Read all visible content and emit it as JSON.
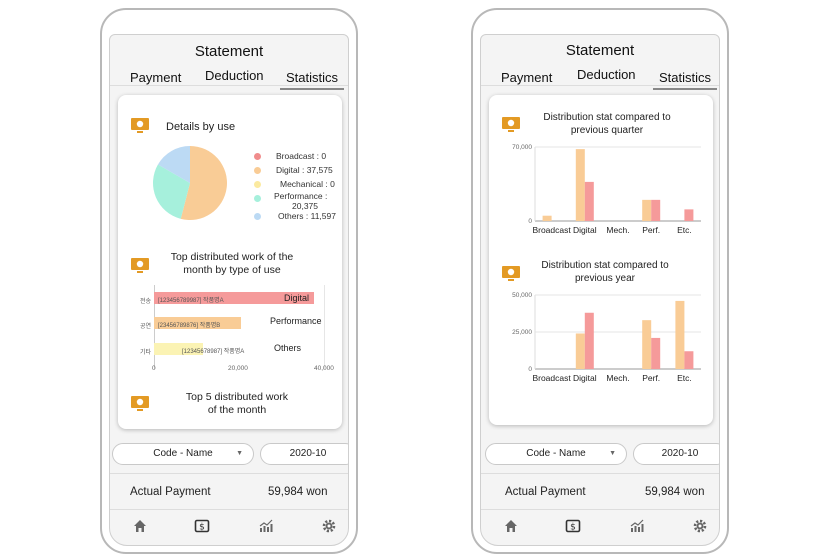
{
  "left_screen": {
    "title": "Statement",
    "tabs": [
      "Payment",
      "Deduction",
      "Statistics"
    ],
    "active_tab": "Statistics",
    "details_title": "Details by use",
    "pie": {
      "slices": [
        {
          "label": "Broadcast : 0",
          "value": 0,
          "color": "#f08c8c"
        },
        {
          "label": "Digital : 37,575",
          "value": 37575,
          "color": "#f9cc96"
        },
        {
          "label": "Mechanical : 0",
          "value": 0,
          "color": "#fbeaa0"
        },
        {
          "label": "Performance :",
          "label2": "20,375",
          "value": 20375,
          "color": "#a6f0dc"
        },
        {
          "label": "Others : 11,597",
          "value": 11597,
          "color": "#bcdaf4"
        }
      ]
    },
    "top_work_title_1": "Top distributed work of the",
    "top_work_title_2": "month by type of use",
    "hbar": {
      "ticks": [
        "0",
        "20,000",
        "40,000"
      ],
      "max": 40000,
      "rows": [
        {
          "left": "전송",
          "inner": "[123456789987] 작품명A",
          "value": 37575,
          "category": "Digital",
          "color": "#f59a9a"
        },
        {
          "left": "공연",
          "inner": "[23456789876] 작품명B",
          "value": 20375,
          "category": "Performance",
          "color": "#f9cc96"
        },
        {
          "left": "기타",
          "inner": "[12345678987] 작품명A",
          "value": 11597,
          "category": "Others",
          "color": "#fbf3b4"
        }
      ]
    },
    "top5_title_1": "Top 5 distributed work",
    "top5_title_2": "of the month",
    "code_select": "Code - Name",
    "month_select": "2020-10",
    "actual_payment_label": "Actual Payment",
    "actual_payment_value": "59,984 won"
  },
  "right_screen": {
    "title": "Statement",
    "tabs": [
      "Payment",
      "Deduction",
      "Statistics"
    ],
    "active_tab": "Statistics",
    "quarter_title_1": "Distribution stat compared to",
    "quarter_title_2": "previous quarter",
    "year_title_1": "Distribution stat compared to",
    "year_title_2": "previous year",
    "code_select": "Code - Name",
    "month_select": "2020-10",
    "actual_payment_label": "Actual Payment",
    "actual_payment_value": "59,984 won"
  },
  "chart_data": [
    {
      "type": "pie",
      "title": "Details by use",
      "categories": [
        "Broadcast",
        "Digital",
        "Mechanical",
        "Performance",
        "Others"
      ],
      "values": [
        0,
        37575,
        0,
        20375,
        11597
      ]
    },
    {
      "type": "bar",
      "orientation": "horizontal",
      "title": "Top distributed work of the month by type of use",
      "categories": [
        "Digital",
        "Performance",
        "Others"
      ],
      "values": [
        37575,
        20375,
        11597
      ],
      "xlim": [
        0,
        40000
      ],
      "ticks": [
        "0",
        "20,000",
        "40,000"
      ]
    },
    {
      "type": "bar",
      "title": "Distribution stat compared to previous quarter",
      "categories": [
        "Broadcast",
        "Digital",
        "Mech.",
        "Perf.",
        "Etc."
      ],
      "series": [
        {
          "values": [
            5000,
            68000,
            0,
            20000,
            0
          ]
        },
        {
          "values": [
            0,
            37000,
            0,
            20000,
            11000
          ]
        }
      ],
      "ylim": [
        0,
        70000
      ],
      "ticks": [
        "0",
        "70,000"
      ]
    },
    {
      "type": "bar",
      "title": "Distribution stat compared to previous year",
      "categories": [
        "Broadcast",
        "Digital",
        "Mech.",
        "Perf.",
        "Etc."
      ],
      "series": [
        {
          "values": [
            0,
            24000,
            0,
            33000,
            46000
          ]
        },
        {
          "values": [
            0,
            38000,
            0,
            21000,
            12000
          ]
        }
      ],
      "ylim": [
        0,
        50000
      ],
      "ticks": [
        "0",
        "25,000",
        "50,000"
      ]
    }
  ],
  "colors": {
    "series_a": "#f9cc96",
    "series_b": "#f59a9a",
    "icon": "#e39a24"
  },
  "nav_icons": [
    "home-icon",
    "payment-icon",
    "statistics-icon",
    "settings-icon"
  ]
}
